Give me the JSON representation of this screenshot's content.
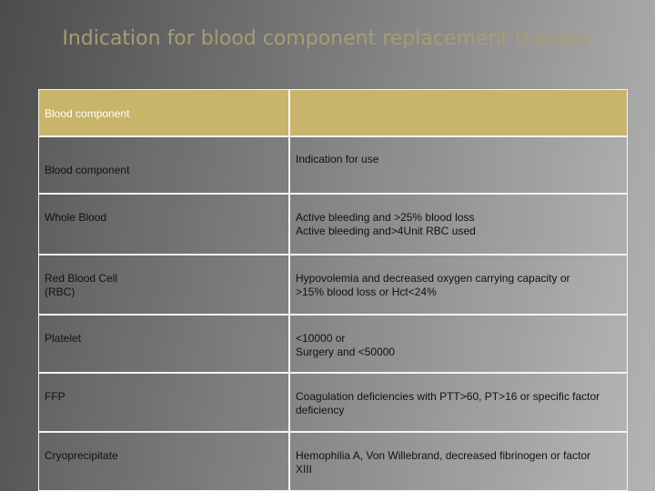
{
  "title": "Indication for blood component replacement therapy",
  "table": {
    "header": [
      "Blood component"
    ],
    "rows": [
      [
        [
          "Blood component"
        ],
        [
          "Indication for use"
        ]
      ],
      [
        [
          "Whole Blood"
        ],
        [
          "Active bleeding and >25% blood loss",
          "Active bleeding and>4Unit RBC used"
        ]
      ],
      [
        [
          "Red Blood Cell",
          "(RBC)"
        ],
        [
          "Hypovolemia and decreased oxygen carrying capacity or",
          ">15% blood loss or Hct<24%"
        ]
      ],
      [
        [
          "Platelet"
        ],
        [
          "<10000 or",
          "Surgery and <50000"
        ]
      ],
      [
        [
          "FFP"
        ],
        [
          "Coagulation deficiencies with PTT>60, PT>16 or specific factor",
          "deficiency"
        ]
      ],
      [
        [
          "Cryoprecipitate"
        ],
        [
          "Hemophilia A, Von Willebrand, decreased fibrinogen or factor",
          "XIII"
        ]
      ]
    ]
  }
}
